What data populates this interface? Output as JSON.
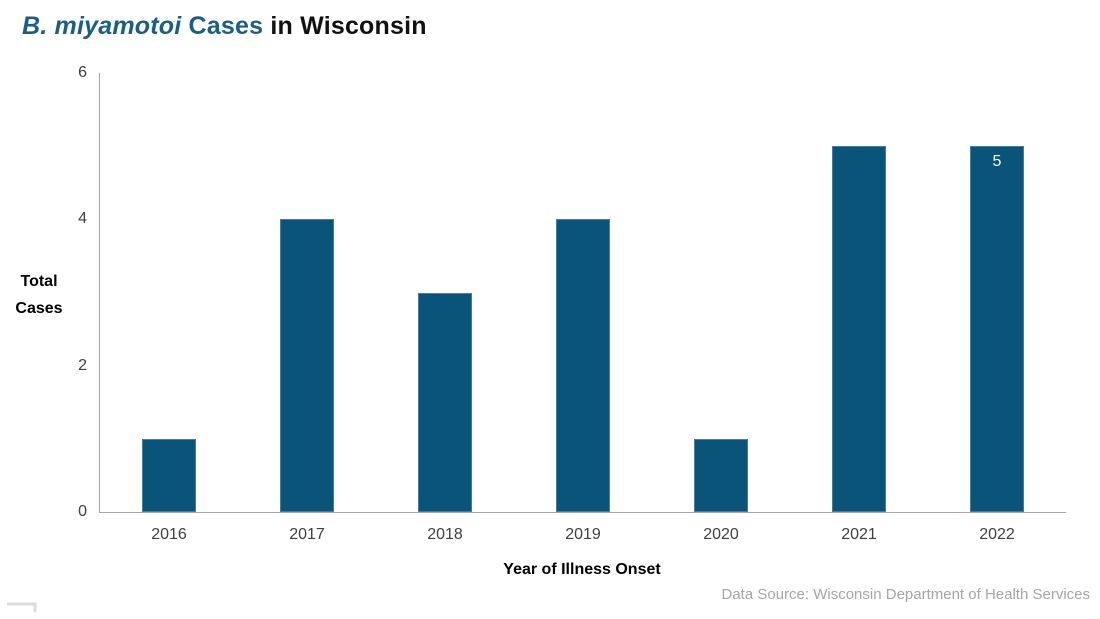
{
  "title": {
    "species": "B. miyamotoi",
    "middle": " Cases",
    "region": " in Wisconsin"
  },
  "chart_data": {
    "type": "bar",
    "title": "B. miyamotoi Cases in Wisconsin",
    "categories": [
      "2016",
      "2017",
      "2018",
      "2019",
      "2020",
      "2021",
      "2022"
    ],
    "values": [
      1,
      4,
      3,
      4,
      1,
      5,
      5
    ],
    "data_labels": [
      "",
      "",
      "",
      "",
      "",
      "",
      "5"
    ],
    "xlabel": "Year of Illness Onset",
    "ylabel": "Total\nCases",
    "ylim": [
      0,
      6
    ],
    "yticks": [
      0,
      2,
      4,
      6
    ],
    "grid": false,
    "legend": "none",
    "bar_color": "#0a547a"
  },
  "footer": {
    "data_source": "Data Source: Wisconsin Department of Health Services"
  },
  "theme": {
    "title_blue": "#1a5d85",
    "bar_color": "#0a547a",
    "data_label": "#ffffff",
    "axis_line": "#a6a6a6",
    "tick_text": "#3f3f3f",
    "axis_title_text": "#000000",
    "source_text": "#a6a6a6"
  }
}
